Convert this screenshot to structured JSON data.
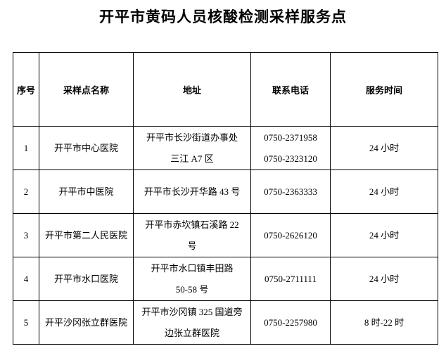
{
  "title": "开平市黄码人员核酸检测采样服务点",
  "table": {
    "headers": {
      "no": "序号",
      "name": "采样点名称",
      "address": "地址",
      "phone": "联系电话",
      "hours": "服务时间"
    },
    "rows": [
      {
        "no": "1",
        "name": "开平市中心医院",
        "address": [
          "开平市长沙街道办事处",
          "三江 A7 区"
        ],
        "phones": [
          "0750-2371958",
          "0750-2323120"
        ],
        "hours": "24 小时"
      },
      {
        "no": "2",
        "name": "开平市中医院",
        "address": [
          "开平市长沙开华路 43 号"
        ],
        "phones": [
          "0750-2363333"
        ],
        "hours": "24 小时"
      },
      {
        "no": "3",
        "name": "开平市第二人民医院",
        "address": [
          "开平市赤坎镇石溪路 22",
          "号"
        ],
        "phones": [
          "0750-2626120"
        ],
        "hours": "24 小时"
      },
      {
        "no": "4",
        "name": "开平市水口医院",
        "address": [
          "开平市水口镇丰田路",
          "50-58 号"
        ],
        "phones": [
          "0750-2711111"
        ],
        "hours": "24 小时"
      },
      {
        "no": "5",
        "name": "开平沙冈张立群医院",
        "address": [
          "开平市沙冈镇 325 国道旁",
          "边张立群医院"
        ],
        "phones": [
          "0750-2257980"
        ],
        "hours": "8 时-22 时"
      }
    ]
  },
  "colors": {
    "text": "#000000",
    "border": "#000000",
    "background": "#ffffff"
  }
}
